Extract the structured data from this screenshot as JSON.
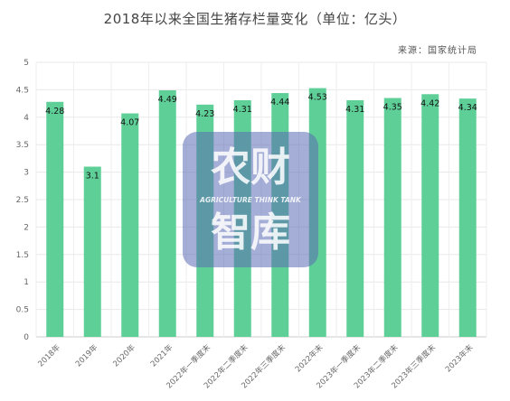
{
  "chart_data": {
    "type": "bar",
    "title": "2018年以来全国生猪存栏量变化（单位：亿头）",
    "source": "来源：国家统计局",
    "categories": [
      "2018年",
      "2019年",
      "2020年",
      "2021年",
      "2022年一季度末",
      "2022年二季度末",
      "2022年三季度末",
      "2022年末",
      "2023年一季度末",
      "2023年二季度末",
      "2023年三季度末",
      "2023年末"
    ],
    "values": [
      4.28,
      3.1,
      4.07,
      4.49,
      4.23,
      4.31,
      4.44,
      4.53,
      4.31,
      4.35,
      4.42,
      4.34
    ],
    "data_labels": [
      "4.28",
      "3.1",
      "4.07",
      "4.49",
      "4.23",
      "4.31",
      "4.44",
      "4.53",
      "4.31",
      "4.35",
      "4.42",
      "4.34"
    ],
    "yticks": [
      "0",
      "0.5",
      "1",
      "1.5",
      "2",
      "2.5",
      "3",
      "3.5",
      "4",
      "4.5",
      "5"
    ],
    "ylim": [
      0,
      5
    ],
    "grid": true,
    "bar_color": "#5fcf98",
    "xlabel": "",
    "ylabel": ""
  },
  "watermark": {
    "line1": "农财",
    "line2": "AGRICULTURE  THINK TANK",
    "line3": "智库"
  }
}
